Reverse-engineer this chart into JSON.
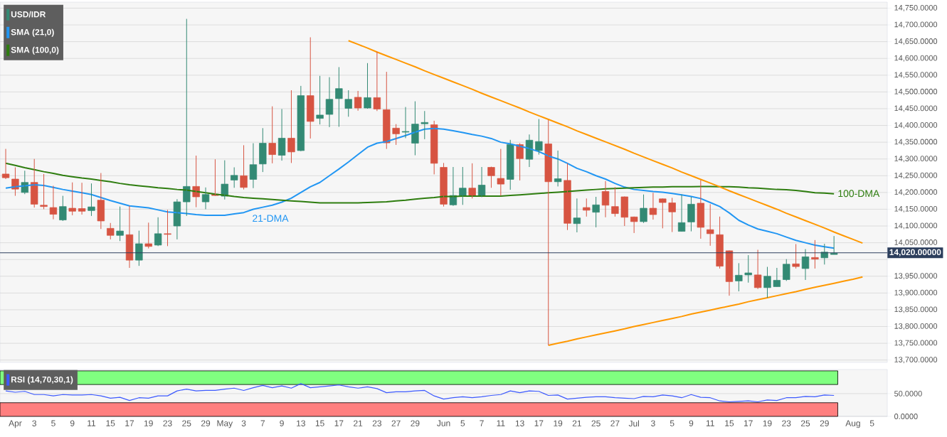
{
  "chart_data": [
    {
      "type": "candlestick",
      "title": "USD/IDR",
      "categories": [
        null,
        null,
        null,
        null,
        null,
        null,
        null,
        null,
        null,
        null,
        null,
        null,
        null,
        null,
        null,
        null,
        null,
        null,
        null,
        null,
        null,
        null,
        null,
        null,
        null,
        null,
        null,
        null,
        null,
        null,
        null,
        null,
        null,
        null,
        null,
        null,
        null,
        null,
        null,
        null,
        null,
        null,
        null,
        null,
        null,
        null,
        null,
        null,
        null,
        null,
        null,
        null,
        null,
        null,
        null,
        null,
        null,
        null,
        null,
        null,
        null,
        null,
        null,
        null,
        null,
        null,
        null,
        null,
        null,
        null,
        null,
        null,
        null,
        null,
        null,
        null,
        null,
        null,
        null,
        null,
        null,
        null,
        null,
        null,
        null,
        null,
        null,
        null,
        null,
        null,
        null,
        null,
        null
      ],
      "ohlc": [
        [
          14255,
          14330,
          14240,
          14244
        ],
        [
          14240,
          14275,
          14190,
          14210
        ],
        [
          14200,
          14265,
          14195,
          14230
        ],
        [
          14230,
          14300,
          14155,
          14165
        ],
        [
          14162,
          14255,
          14150,
          14158
        ],
        [
          14155,
          14220,
          14120,
          14135
        ],
        [
          14118,
          14190,
          14115,
          14158
        ],
        [
          14153,
          14230,
          14132,
          14144
        ],
        [
          14152,
          14229,
          14134,
          14144
        ],
        [
          14146,
          14227,
          14130,
          14157
        ],
        [
          14177,
          14258,
          14091,
          14115
        ],
        [
          14093,
          14109,
          14060,
          14072
        ],
        [
          14072,
          14158,
          14055,
          14085
        ],
        [
          14074,
          14160,
          13975,
          13998
        ],
        [
          13998,
          14086,
          13981,
          14047
        ],
        [
          14047,
          14110,
          14033,
          14039
        ],
        [
          14043,
          14126,
          14040,
          14077
        ],
        [
          14077,
          14148,
          14040,
          14075
        ],
        [
          14100,
          14180,
          14060,
          14172
        ],
        [
          14172,
          14718,
          14130,
          14218
        ],
        [
          14218,
          14310,
          14156,
          14187
        ],
        [
          14172,
          14215,
          14150,
          14194
        ],
        [
          14195,
          14299,
          14190,
          14191
        ],
        [
          14189,
          14296,
          14179,
          14225
        ],
        [
          14237,
          14275,
          14214,
          14251
        ],
        [
          14250,
          14341,
          14209,
          14215
        ],
        [
          14239,
          14347,
          14213,
          14283
        ],
        [
          14285,
          14392,
          14261,
          14347
        ],
        [
          14347,
          14457,
          14287,
          14313
        ],
        [
          14311,
          14449,
          14295,
          14362
        ],
        [
          14362,
          14505,
          14288,
          14321
        ],
        [
          14325,
          14518,
          14323,
          14489
        ],
        [
          14489,
          14663,
          14361,
          14412
        ],
        [
          14421,
          14548,
          14403,
          14431
        ],
        [
          14433,
          14544,
          14395,
          14478
        ],
        [
          14480,
          14574,
          14396,
          14510
        ],
        [
          14451,
          14505,
          14426,
          14478
        ],
        [
          14484,
          14503,
          14444,
          14452
        ],
        [
          14452,
          14586,
          14450,
          14483
        ],
        [
          14483,
          14620,
          14443,
          14449
        ],
        [
          14447,
          14560,
          14330,
          14348
        ],
        [
          14392,
          14404,
          14342,
          14375
        ],
        [
          14380,
          14455,
          14362,
          14382
        ],
        [
          14347,
          14472,
          14311,
          14404
        ],
        [
          14405,
          14443,
          14359,
          14409
        ],
        [
          14402,
          14414,
          14254,
          14287
        ],
        [
          14275,
          14288,
          14158,
          14165
        ],
        [
          14163,
          14276,
          14160,
          14191
        ],
        [
          14191,
          14276,
          14163,
          14213
        ],
        [
          14213,
          14287,
          14182,
          14188
        ],
        [
          14188,
          14276,
          14186,
          14222
        ],
        [
          14275,
          14277,
          14214,
          14250
        ],
        [
          14242,
          14330,
          14190,
          14225
        ],
        [
          14239,
          14357,
          14208,
          14343
        ],
        [
          14343,
          14347,
          14236,
          14301
        ],
        [
          14299,
          14373,
          14276,
          14356
        ],
        [
          14325,
          14419,
          14313,
          14352
        ],
        [
          14345,
          14417,
          13744,
          14232
        ],
        [
          14232,
          14325,
          14218,
          14241
        ],
        [
          14236,
          14287,
          14088,
          14108
        ],
        [
          14107,
          14182,
          14081,
          14124
        ],
        [
          14155,
          14182,
          14128,
          14147
        ],
        [
          14141,
          14187,
          14096,
          14163
        ],
        [
          14203,
          14234,
          14126,
          14162
        ],
        [
          14158,
          14216,
          14128,
          14137
        ],
        [
          14187,
          14188,
          14100,
          14126
        ],
        [
          14127,
          14128,
          14079,
          14113
        ],
        [
          14113,
          14194,
          14109,
          14153
        ],
        [
          14153,
          14199,
          14119,
          14134
        ],
        [
          14181,
          14182,
          14093,
          14170
        ],
        [
          14169,
          14184,
          14082,
          14142
        ],
        [
          14084,
          14194,
          14084,
          14110
        ],
        [
          14112,
          14187,
          14084,
          14165
        ],
        [
          14168,
          14237,
          14062,
          14096
        ],
        [
          14089,
          14165,
          14041,
          14077
        ],
        [
          14074,
          14128,
          13973,
          13980
        ],
        [
          14026,
          14027,
          13892,
          13934
        ],
        [
          13936,
          13989,
          13905,
          13953
        ],
        [
          13954,
          14013,
          13931,
          13960
        ],
        [
          13954,
          14029,
          13912,
          13916
        ],
        [
          13916,
          13978,
          13886,
          13950
        ],
        [
          13919,
          13975,
          13919,
          13938
        ],
        [
          13940,
          14001,
          13936,
          13986
        ],
        [
          13987,
          14046,
          13973,
          13979
        ],
        [
          13973,
          14031,
          13939,
          14008
        ],
        [
          14006,
          14058,
          13973,
          14001
        ],
        [
          14005,
          14047,
          13985,
          14022
        ],
        [
          14015,
          14070,
          14015,
          14019
        ],
        null,
        null,
        null,
        null,
        null
      ],
      "series": [
        {
          "type": "line",
          "name": "SMA (21,0)",
          "color": "#2196f3",
          "values": [
            14213,
            14217,
            14220,
            14223,
            14221,
            14215,
            14209,
            14204,
            14199,
            14194,
            14185,
            14176,
            14168,
            14160,
            14157,
            14154,
            14148,
            14142,
            14140,
            14137,
            14134,
            14132,
            14132,
            14132,
            14136,
            14140,
            14150,
            14156,
            14162,
            14171,
            14183,
            14200,
            14217,
            14230,
            14250,
            14270,
            14291,
            14313,
            14335,
            14347,
            14352,
            14361,
            14370,
            14380,
            14389,
            14391,
            14389,
            14384,
            14379,
            14373,
            14368,
            14361,
            14350,
            14345,
            14338,
            14331,
            14322,
            14309,
            14300,
            14287,
            14272,
            14262,
            14250,
            14240,
            14227,
            14216,
            14209,
            14206,
            14203,
            14201,
            14197,
            14193,
            14188,
            14182,
            14170,
            14158,
            14139,
            14117,
            14103,
            14091,
            14084,
            14077,
            14067,
            14057,
            14050,
            14043,
            14038,
            14034,
            null,
            null,
            null,
            null,
            null
          ]
        },
        {
          "type": "line",
          "name": "SMA (100,0)",
          "color": "#2e7d0f",
          "values": [
            14287,
            14281,
            14274,
            14268,
            14262,
            14257,
            14251,
            14247,
            14243,
            14240,
            14236,
            14232,
            14227,
            14223,
            14220,
            14217,
            14214,
            14212,
            14209,
            14207,
            14203,
            14199,
            14195,
            14192,
            14188,
            14185,
            14183,
            14181,
            14179,
            14177,
            14175,
            14173,
            14171,
            14169,
            14169,
            14169,
            14169,
            14169,
            14170,
            14171,
            14172,
            14175,
            14177,
            14180,
            14183,
            14185,
            14188,
            14188,
            14189,
            14189,
            14189,
            14189,
            14189,
            14191,
            14193,
            14195,
            14197,
            14199,
            14201,
            14203,
            14205,
            14207,
            14209,
            14211,
            14212,
            14213,
            14214,
            14215,
            14216,
            14216,
            14217,
            14217,
            14217,
            14218,
            14218,
            14217,
            14217,
            14216,
            14214,
            14213,
            14211,
            14209,
            14208,
            14206,
            14203,
            14199,
            14198,
            14196,
            null,
            null,
            null,
            null,
            null
          ]
        },
        {
          "type": "line",
          "color": "#ff9800",
          "values": [
            null,
            null,
            null,
            null,
            null,
            null,
            null,
            null,
            null,
            null,
            null,
            null,
            null,
            null,
            null,
            null,
            null,
            null,
            null,
            null,
            null,
            null,
            null,
            null,
            null,
            null,
            null,
            null,
            null,
            null,
            null,
            null,
            null,
            null,
            null,
            null,
            14653,
            14642,
            14631,
            14619,
            14608,
            14597,
            14586,
            14575,
            14563,
            14552,
            14541,
            14530,
            14519,
            14508,
            14496,
            14485,
            14474,
            14463,
            14452,
            14440,
            14429,
            14418,
            14407,
            14396,
            14384,
            14373,
            14362,
            14351,
            14340,
            14329,
            14317,
            14306,
            14295,
            14284,
            14273,
            14261,
            14250,
            14239,
            14228,
            14217,
            14205,
            14194,
            14183,
            14172,
            14161,
            14150,
            14138,
            14127,
            14116,
            14105,
            14094,
            14082,
            14071,
            14060,
            14049,
            null,
            null
          ]
        },
        {
          "type": "line",
          "color": "#ff9800",
          "values": [
            null,
            null,
            null,
            null,
            null,
            null,
            null,
            null,
            null,
            null,
            null,
            null,
            null,
            null,
            null,
            null,
            null,
            null,
            null,
            null,
            null,
            null,
            null,
            null,
            null,
            null,
            null,
            null,
            null,
            null,
            null,
            null,
            null,
            null,
            null,
            null,
            null,
            null,
            null,
            null,
            null,
            null,
            null,
            null,
            null,
            null,
            null,
            null,
            null,
            null,
            null,
            null,
            null,
            null,
            null,
            null,
            null,
            13744,
            13750,
            13756,
            13763,
            13769,
            13775,
            13781,
            13787,
            13793,
            13800,
            13806,
            13812,
            13818,
            13824,
            13830,
            13837,
            13843,
            13849,
            13855,
            13861,
            13867,
            13874,
            13880,
            13886,
            13892,
            13898,
            13904,
            13911,
            13917,
            13923,
            13929,
            13935,
            13941,
            13948,
            null,
            null
          ]
        }
      ],
      "ylim": [
        13693,
        14768
      ],
      "yticks": [
        {
          "value": 13700,
          "label": "13,700.0000"
        },
        {
          "value": 13750,
          "label": "13,750.0000"
        },
        {
          "value": 13800,
          "label": "13,800.0000"
        },
        {
          "value": 13850,
          "label": "13,850.0000"
        },
        {
          "value": 13900,
          "label": "13,900.0000"
        },
        {
          "value": 13950,
          "label": "13,950.0000"
        },
        {
          "value": 14000,
          "label": null
        },
        {
          "value": 14050,
          "label": "14,050.0000"
        },
        {
          "value": 14100,
          "label": "14,100.0000"
        },
        {
          "value": 14150,
          "label": "14,150.0000"
        },
        {
          "value": 14200,
          "label": "14,200.0000"
        },
        {
          "value": 14250,
          "label": "14,250.0000"
        },
        {
          "value": 14300,
          "label": "14,300.0000"
        },
        {
          "value": 14350,
          "label": "14,350.0000"
        },
        {
          "value": 14400,
          "label": "14,400.0000"
        },
        {
          "value": 14450,
          "label": "14,450.0000"
        },
        {
          "value": 14500,
          "label": "14,500.0000"
        },
        {
          "value": 14550,
          "label": "14,550.0000"
        },
        {
          "value": 14600,
          "label": "14,600.0000"
        },
        {
          "value": 14650,
          "label": "14,650.0000"
        },
        {
          "value": 14700,
          "label": "14,700.0000"
        },
        {
          "value": 14750,
          "label": "14,750.0000"
        }
      ],
      "ref_lines": [
        {
          "axis": "y",
          "value": 14020,
          "label": "14,020.00000",
          "color": "#2c3e5c"
        }
      ],
      "annotations": [
        "21-DMA",
        "100-DMA"
      ],
      "grid": "y",
      "legend": "top left",
      "tick_labels": "y"
    },
    {
      "type": "line",
      "categories": [
        null,
        "Apr",
        null,
        "3",
        null,
        "5",
        null,
        "9",
        null,
        "11",
        null,
        "15",
        null,
        "17",
        null,
        "19",
        null,
        "23",
        null,
        "25",
        null,
        "29",
        null,
        "May",
        null,
        "3",
        null,
        "7",
        null,
        "9",
        null,
        "13",
        null,
        "15",
        null,
        "17",
        null,
        "21",
        null,
        "23",
        null,
        "27",
        null,
        "29",
        null,
        null,
        "Jun",
        null,
        "5",
        null,
        "7",
        null,
        "11",
        null,
        "13",
        null,
        "17",
        null,
        "19",
        null,
        "21",
        null,
        "25",
        null,
        "27",
        null,
        "Jul",
        null,
        "3",
        null,
        "5",
        null,
        "9",
        null,
        "11",
        null,
        "15",
        null,
        "17",
        null,
        "19",
        null,
        "23",
        null,
        "25",
        null,
        "29",
        null,
        null,
        "Aug",
        null,
        "5",
        null
      ],
      "series": [
        {
          "name": "RSI (14,70,30,1)",
          "color": "#3d5afe",
          "values": [
            56,
            53,
            55,
            48,
            48,
            45,
            48,
            47,
            47,
            48,
            45,
            40,
            42,
            35,
            41,
            40,
            45,
            45,
            56,
            60,
            56,
            57,
            57,
            60,
            62,
            57,
            63,
            68,
            63,
            67,
            62,
            72,
            63,
            65,
            67,
            69,
            65,
            62,
            65,
            61,
            52,
            54,
            54,
            56,
            57,
            45,
            38,
            41,
            43,
            41,
            43,
            46,
            48,
            56,
            52,
            56,
            55,
            46,
            47,
            38,
            40,
            42,
            43,
            43,
            41,
            40,
            39,
            44,
            43,
            47,
            45,
            41,
            48,
            42,
            41,
            34,
            32,
            33,
            34,
            32,
            36,
            35,
            41,
            41,
            44,
            43,
            47,
            46,
            null,
            null,
            null,
            null,
            null
          ]
        }
      ],
      "ylim": [
        0,
        103
      ],
      "yticks": [
        {
          "value": 0,
          "label": "0.0000"
        },
        {
          "value": 50,
          "label": "50.0000"
        }
      ],
      "bands": [
        {
          "axis": "y",
          "from": 70,
          "to": 100,
          "color": "#80ff80"
        },
        {
          "axis": "y",
          "from": 0,
          "to": 30,
          "color": "#ff7f7f"
        }
      ],
      "grid": "y",
      "legend": "top left"
    }
  ]
}
